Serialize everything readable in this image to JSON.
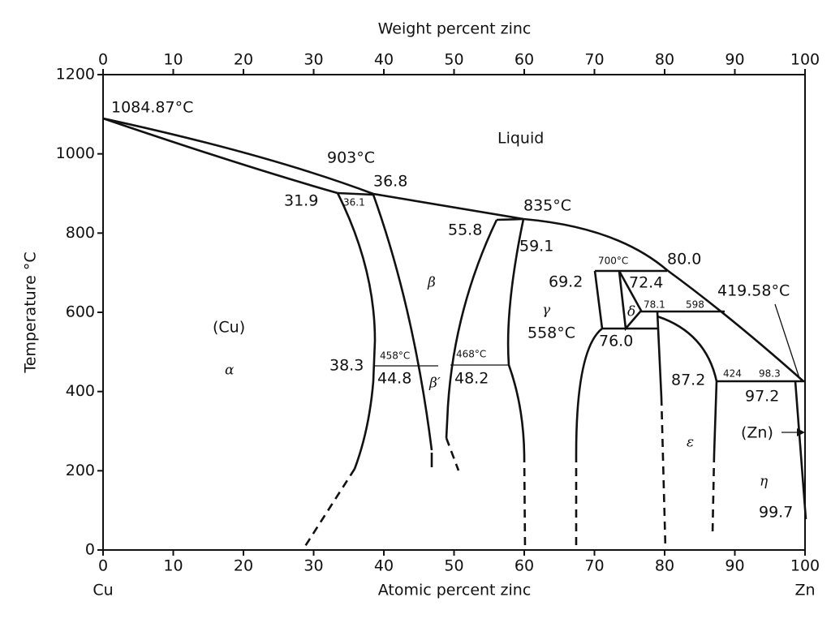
{
  "top_axis": {
    "title": "Weight percent zinc",
    "ticks": [
      0,
      10,
      20,
      30,
      40,
      50,
      60,
      70,
      80,
      90,
      100
    ]
  },
  "bottom_axis": {
    "title": "Atomic percent zinc",
    "ticks": [
      0,
      10,
      20,
      30,
      40,
      50,
      60,
      70,
      80,
      90,
      100
    ],
    "left_label": "Cu",
    "right_label": "Zn"
  },
  "left_axis": {
    "title": "Temperature °C",
    "ticks": [
      0,
      200,
      400,
      600,
      800,
      1000,
      1200
    ]
  },
  "labels": [
    "1084.87°C",
    "Liquid",
    "903°C",
    "36.8",
    "31.9",
    "36.1",
    "835°C",
    "55.8",
    "59.1",
    "700°C",
    "80.0",
    "69.2",
    "72.4",
    "419.58°C",
    "78.1",
    "598",
    "(Cu)",
    "558°C",
    "76.0",
    "38.3",
    "458°C",
    "44.8",
    "468°C",
    "48.2",
    "87.2",
    "424",
    "98.3",
    "97.2",
    "(Zn)",
    "99.7"
  ],
  "phases": [
    "α",
    "β",
    "β′",
    "γ",
    "δ",
    "ε",
    "η"
  ]
}
